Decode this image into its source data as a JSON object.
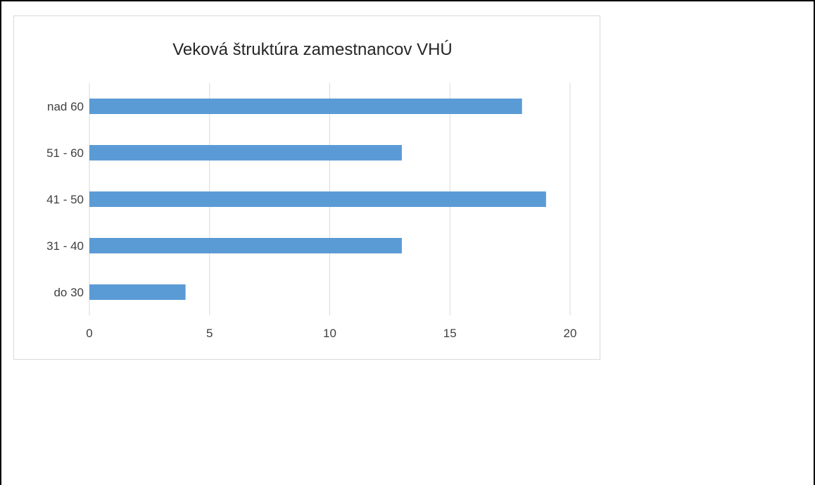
{
  "chart_data": {
    "type": "bar",
    "orientation": "horizontal",
    "title": "Veková štruktúra zamestnancov VHÚ",
    "categories": [
      "nad 60",
      "51 - 60",
      "41 - 50",
      "31 - 40",
      "do 30"
    ],
    "values": [
      18,
      13,
      19,
      13,
      4
    ],
    "xlim": [
      0,
      20
    ],
    "x_ticks": [
      "0",
      "5",
      "10",
      "15",
      "20"
    ],
    "xlabel": "",
    "ylabel": "",
    "grid": true,
    "legend": "none",
    "bar_color": "#5b9bd5",
    "grid_color": "#d9d9d9"
  }
}
